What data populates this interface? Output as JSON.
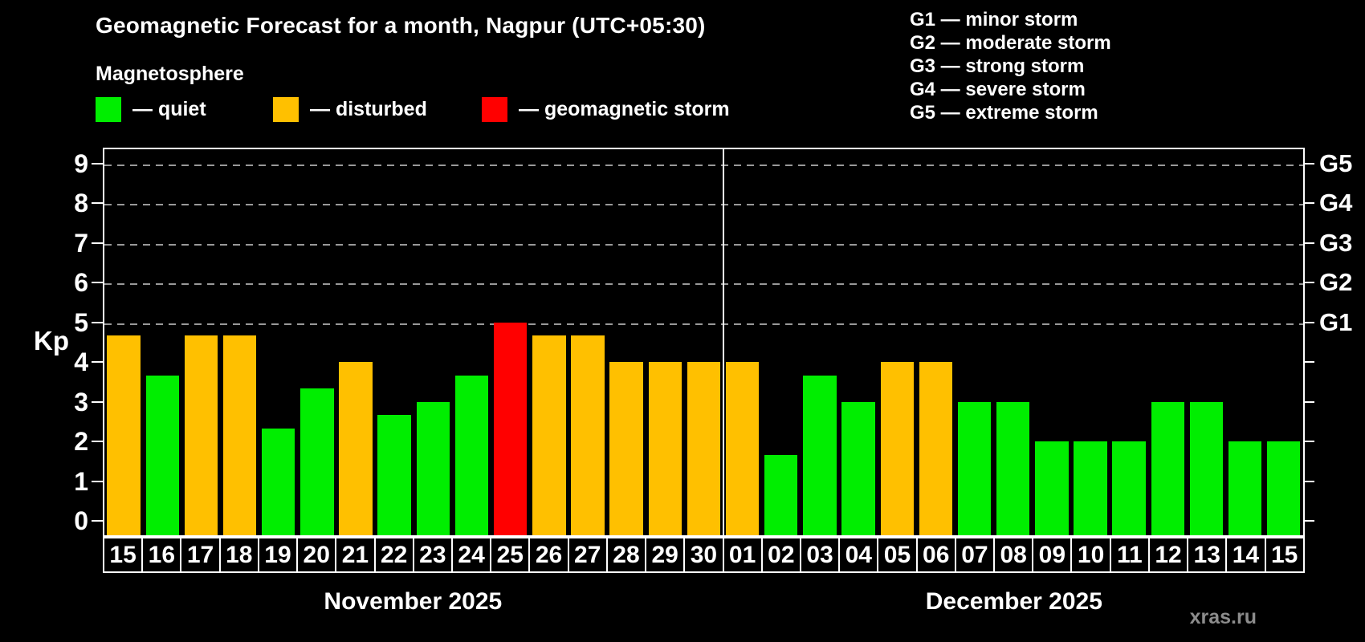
{
  "title": "Geomagnetic Forecast for a month, Nagpur (UTC+05:30)",
  "subtitle": "Magnetosphere",
  "legend": {
    "quiet_label": "— quiet",
    "disturbed_label": "— disturbed",
    "storm_label": "— geomagnetic storm"
  },
  "g_legend": [
    "G1 — minor storm",
    "G2 — moderate storm",
    "G3 — strong storm",
    "G4 — severe storm",
    "G5 — extreme storm"
  ],
  "axis": {
    "kp_label": "Kp",
    "yticks": [
      0,
      1,
      2,
      3,
      4,
      5,
      6,
      7,
      8,
      9
    ],
    "grid_levels": [
      {
        "value": 5,
        "label": "G1"
      },
      {
        "value": 6,
        "label": "G2"
      },
      {
        "value": 7,
        "label": "G3"
      },
      {
        "value": 8,
        "label": "G4"
      },
      {
        "value": 9,
        "label": "G5"
      }
    ]
  },
  "colors": {
    "background": "#000000",
    "quiet": "#00ee00",
    "disturbed": "#ffc000",
    "storm": "#ff0000",
    "grid": "#999999",
    "axis": "#ffffff",
    "watermark": "#8c8c8c"
  },
  "watermark": "xras.ru",
  "chart_data": {
    "type": "bar",
    "title": "Geomagnetic Forecast for a month, Nagpur (UTC+05:30)",
    "xlabel": "",
    "ylabel": "Kp",
    "ylim": [
      0,
      9
    ],
    "grid": "dashed horizontal at Kp 5-9 (G1-G5)",
    "legend_position": "top",
    "months": [
      {
        "label": "November 2025",
        "days": 16
      },
      {
        "label": "December 2025",
        "days": 15
      }
    ],
    "bars": [
      {
        "day": "15",
        "month": "November 2025",
        "kp": 4.67,
        "status": "disturbed"
      },
      {
        "day": "16",
        "month": "November 2025",
        "kp": 3.67,
        "status": "quiet"
      },
      {
        "day": "17",
        "month": "November 2025",
        "kp": 4.67,
        "status": "disturbed"
      },
      {
        "day": "18",
        "month": "November 2025",
        "kp": 4.67,
        "status": "disturbed"
      },
      {
        "day": "19",
        "month": "November 2025",
        "kp": 2.33,
        "status": "quiet"
      },
      {
        "day": "20",
        "month": "November 2025",
        "kp": 3.33,
        "status": "quiet"
      },
      {
        "day": "21",
        "month": "November 2025",
        "kp": 4.0,
        "status": "disturbed"
      },
      {
        "day": "22",
        "month": "November 2025",
        "kp": 2.67,
        "status": "quiet"
      },
      {
        "day": "23",
        "month": "November 2025",
        "kp": 3.0,
        "status": "quiet"
      },
      {
        "day": "24",
        "month": "November 2025",
        "kp": 3.67,
        "status": "quiet"
      },
      {
        "day": "25",
        "month": "November 2025",
        "kp": 5.0,
        "status": "storm"
      },
      {
        "day": "26",
        "month": "November 2025",
        "kp": 4.67,
        "status": "disturbed"
      },
      {
        "day": "27",
        "month": "November 2025",
        "kp": 4.67,
        "status": "disturbed"
      },
      {
        "day": "28",
        "month": "November 2025",
        "kp": 4.0,
        "status": "disturbed"
      },
      {
        "day": "29",
        "month": "November 2025",
        "kp": 4.0,
        "status": "disturbed"
      },
      {
        "day": "30",
        "month": "November 2025",
        "kp": 4.0,
        "status": "disturbed"
      },
      {
        "day": "01",
        "month": "December 2025",
        "kp": 4.0,
        "status": "disturbed"
      },
      {
        "day": "02",
        "month": "December 2025",
        "kp": 1.67,
        "status": "quiet"
      },
      {
        "day": "03",
        "month": "December 2025",
        "kp": 3.67,
        "status": "quiet"
      },
      {
        "day": "04",
        "month": "December 2025",
        "kp": 3.0,
        "status": "quiet"
      },
      {
        "day": "05",
        "month": "December 2025",
        "kp": 4.0,
        "status": "disturbed"
      },
      {
        "day": "06",
        "month": "December 2025",
        "kp": 4.0,
        "status": "disturbed"
      },
      {
        "day": "07",
        "month": "December 2025",
        "kp": 3.0,
        "status": "quiet"
      },
      {
        "day": "08",
        "month": "December 2025",
        "kp": 3.0,
        "status": "quiet"
      },
      {
        "day": "09",
        "month": "December 2025",
        "kp": 2.0,
        "status": "quiet"
      },
      {
        "day": "10",
        "month": "December 2025",
        "kp": 2.0,
        "status": "quiet"
      },
      {
        "day": "11",
        "month": "December 2025",
        "kp": 2.0,
        "status": "quiet"
      },
      {
        "day": "12",
        "month": "December 2025",
        "kp": 3.0,
        "status": "quiet"
      },
      {
        "day": "13",
        "month": "December 2025",
        "kp": 3.0,
        "status": "quiet"
      },
      {
        "day": "14",
        "month": "December 2025",
        "kp": 2.0,
        "status": "quiet"
      },
      {
        "day": "15",
        "month": "December 2025",
        "kp": 2.0,
        "status": "quiet"
      }
    ]
  }
}
